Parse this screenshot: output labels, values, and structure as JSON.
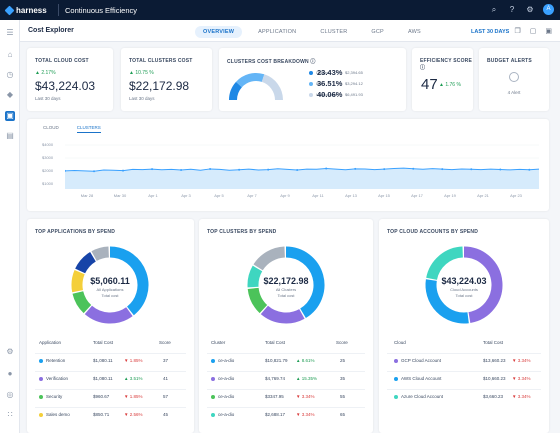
{
  "app": {
    "brand": "harness",
    "module": "Continuous Efficiency",
    "avatar": "A"
  },
  "page": {
    "title": "Cost Explorer",
    "range": "LAST 30 DAYS"
  },
  "tabs": [
    {
      "label": "OVERVIEW",
      "active": true
    },
    {
      "label": "APPLICATION",
      "active": false
    },
    {
      "label": "CLUSTER",
      "active": false
    },
    {
      "label": "GCP",
      "active": false
    },
    {
      "label": "AWS",
      "active": false
    }
  ],
  "summary": {
    "cloud": {
      "label": "TOTAL CLOUD COST",
      "change": "2.17%",
      "value": "$43,224.03",
      "sub": "Last 30 days"
    },
    "clusters": {
      "label": "TOTAL CLUSTERS COST",
      "change": "10.75 %",
      "value": "$22,172.98",
      "sub": "Last 30 days"
    },
    "breakdown": {
      "label": "CLUSTERS COST BREAKDOWN",
      "rows": [
        {
          "name": "Utilized",
          "amount": "$2,394.65",
          "pct": "23.43%",
          "color": "#1e88e5"
        },
        {
          "name": "Idle",
          "amount": "$3,294.12",
          "pct": "36.51%",
          "color": "#64b5f6"
        },
        {
          "name": "Unallocated",
          "amount": "$6,491.93",
          "pct": "40.06%",
          "color": "#c9d8ea"
        }
      ]
    },
    "efficiency": {
      "label": "EFFICIENCY SCORE",
      "score": "47",
      "change": "1.76 %"
    },
    "budget": {
      "label": "BUDGET ALERTS",
      "sub": "4 Alert"
    }
  },
  "trend": {
    "tabs": [
      "CLOUD",
      "CLUSTERS"
    ],
    "active_tab": "CLUSTERS",
    "yticks": [
      "$4000",
      "$3000",
      "$2000",
      "$1000",
      "$0"
    ],
    "xticks": [
      "Mar 28",
      "Mar 30",
      "Apr 1",
      "Apr 3",
      "Apr 5",
      "Apr 7",
      "Apr 9",
      "Apr 11",
      "Apr 13",
      "Apr 15",
      "Apr 17",
      "Apr 19",
      "Apr 21",
      "Apr 23"
    ],
    "series": [
      1530,
      1570,
      1540,
      1500,
      1620,
      1600,
      1560,
      1680,
      1650,
      1700,
      1640,
      1680,
      1620,
      1690,
      1600,
      1720,
      1680,
      1600,
      1640,
      1700,
      1620,
      1660,
      1740,
      1680,
      1620,
      1700,
      1690,
      1760,
      1700,
      1640,
      1730,
      1720,
      1660,
      1700,
      1760,
      1800,
      1740,
      1690,
      1750,
      1700,
      1650,
      1720,
      1690,
      1660,
      1700,
      1670,
      1630,
      1680,
      1640,
      1700
    ]
  },
  "apps": {
    "title": "TOP APPLICATIONS BY SPEND",
    "center_value": "$5,060.11",
    "center_sub1": "All Applications",
    "center_sub2": "Total cost",
    "headers": [
      "Application",
      "Total Cost",
      "Score"
    ],
    "segments": [
      {
        "value": 40,
        "color": "#1aa0ef"
      },
      {
        "value": 22,
        "color": "#8b6fe0"
      },
      {
        "value": 10,
        "color": "#4cc35a"
      },
      {
        "value": 10,
        "color": "#f4cf3a"
      },
      {
        "value": 10,
        "color": "#1744a8"
      },
      {
        "value": 8,
        "color": "#a9b2bd"
      }
    ],
    "rows": [
      {
        "name": "Retention",
        "cost": "$1,080.11",
        "change": "1.85%",
        "dir": "down",
        "score": "37",
        "color": "#1aa0ef"
      },
      {
        "name": "Verification",
        "cost": "$1,080.11",
        "change": "3.51%",
        "dir": "up",
        "score": "41",
        "color": "#8b6fe0"
      },
      {
        "name": "Security",
        "cost": "$960.67",
        "change": "1.85%",
        "dir": "down",
        "score": "57",
        "color": "#4cc35a"
      },
      {
        "name": "Sales demo",
        "cost": "$850.71",
        "change": "2.56%",
        "dir": "down",
        "score": "45",
        "color": "#f4cf3a"
      }
    ]
  },
  "clusters": {
    "title": "TOP CLUSTERS BY SPEND",
    "center_value": "$22,172.98",
    "center_sub1": "All Clusters",
    "center_sub2": "Total cost",
    "headers": [
      "Cluster",
      "Total Cost",
      "Score"
    ],
    "segments": [
      {
        "value": 42,
        "color": "#1aa0ef"
      },
      {
        "value": 20,
        "color": "#8b6fe0"
      },
      {
        "value": 12,
        "color": "#4cc35a"
      },
      {
        "value": 10,
        "color": "#3fd6c0"
      },
      {
        "value": 16,
        "color": "#a9b2bd"
      }
    ],
    "rows": [
      {
        "name": "ce-a-dio",
        "cost": "$10,821.79",
        "change": "8.61%",
        "dir": "up",
        "score": "25",
        "color": "#1aa0ef"
      },
      {
        "name": "ce-a-dio",
        "cost": "$4,769.74",
        "change": "15.35%",
        "dir": "up",
        "score": "35",
        "color": "#8b6fe0"
      },
      {
        "name": "ce-a-dio",
        "cost": "$3347.95",
        "change": "3.34%",
        "dir": "down",
        "score": "55",
        "color": "#4cc35a"
      },
      {
        "name": "ce-a-dio",
        "cost": "$2,688.17",
        "change": "3.34%",
        "dir": "down",
        "score": "65",
        "color": "#3fd6c0"
      }
    ]
  },
  "accounts": {
    "title": "TOP CLOUD ACCOUNTS BY SPEND",
    "center_value": "$43,224.03",
    "center_sub1": "Cloud Accounts",
    "center_sub2": "Total cost",
    "headers": [
      "Cloud",
      "Total Cost"
    ],
    "segments": [
      {
        "value": 48,
        "color": "#8b6fe0"
      },
      {
        "value": 30,
        "color": "#1aa0ef"
      },
      {
        "value": 22,
        "color": "#3fd6c0"
      }
    ],
    "rows": [
      {
        "name": "GCP Cloud Account",
        "cost": "$13,660.23",
        "change": "3.34%",
        "dir": "down",
        "color": "#8b6fe0"
      },
      {
        "name": "AWS Cloud Account",
        "cost": "$10,660.23",
        "change": "3.34%",
        "dir": "down",
        "color": "#1aa0ef"
      },
      {
        "name": "Azure Cloud Account",
        "cost": "$3,660.23",
        "change": "3.34%",
        "dir": "down",
        "color": "#3fd6c0"
      }
    ]
  }
}
